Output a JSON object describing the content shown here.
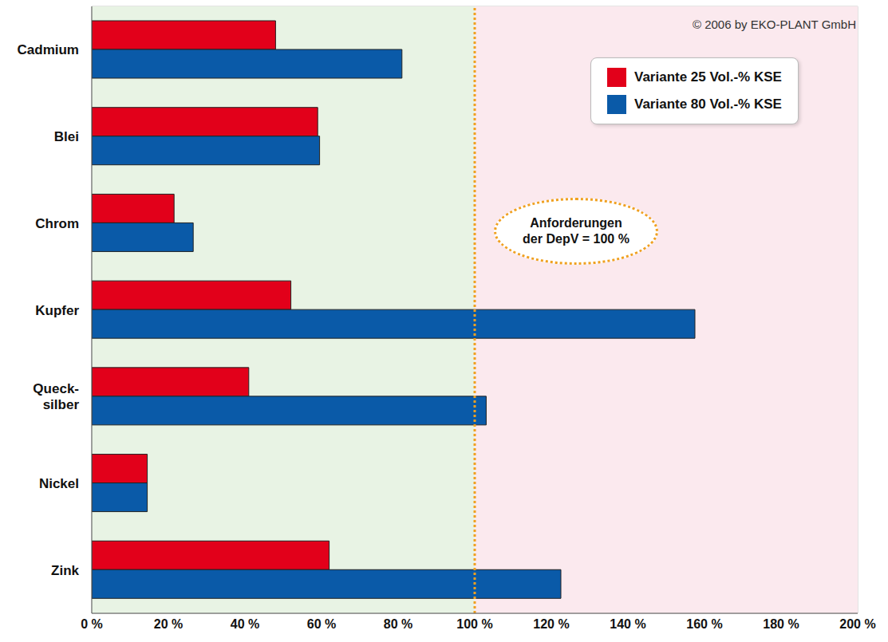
{
  "chart_data": {
    "type": "bar",
    "orientation": "horizontal",
    "categories": [
      "Cadmium",
      "Blei",
      "Chrom",
      "Kupfer",
      "Queck-silber",
      "Nickel",
      "Zink"
    ],
    "series": [
      {
        "name": "Variante 25 Vol.-% KSE",
        "color": "#e2001a",
        "values": [
          48,
          59,
          21.5,
          52,
          41,
          14.5,
          62
        ]
      },
      {
        "name": "Variante 80 Vol.-% KSE",
        "color": "#0a5aa8",
        "values": [
          81,
          59.5,
          26.5,
          157.5,
          103,
          14.5,
          122.5
        ]
      }
    ],
    "xlim": [
      0,
      200
    ],
    "xticks": [
      {
        "value": 0,
        "label": "0 %"
      },
      {
        "value": 20,
        "label": "20 %"
      },
      {
        "value": 40,
        "label": "40 %"
      },
      {
        "value": 60,
        "label": "60 %"
      },
      {
        "value": 80,
        "label": "80 %"
      },
      {
        "value": 100,
        "label": "100 %"
      },
      {
        "value": 120,
        "label": "120 %"
      },
      {
        "value": 140,
        "label": "140 %"
      },
      {
        "value": 160,
        "label": "160 %"
      },
      {
        "value": 180,
        "label": "180 %"
      },
      {
        "value": 200,
        "label": "200 %"
      }
    ],
    "grid": true,
    "legend": "top-right",
    "annotations": [
      {
        "text": "© 2006 by EKO-PLANT GmbH"
      },
      {
        "text": "Anforderungen der DepV = 100 %",
        "x": 100
      }
    ]
  }
}
